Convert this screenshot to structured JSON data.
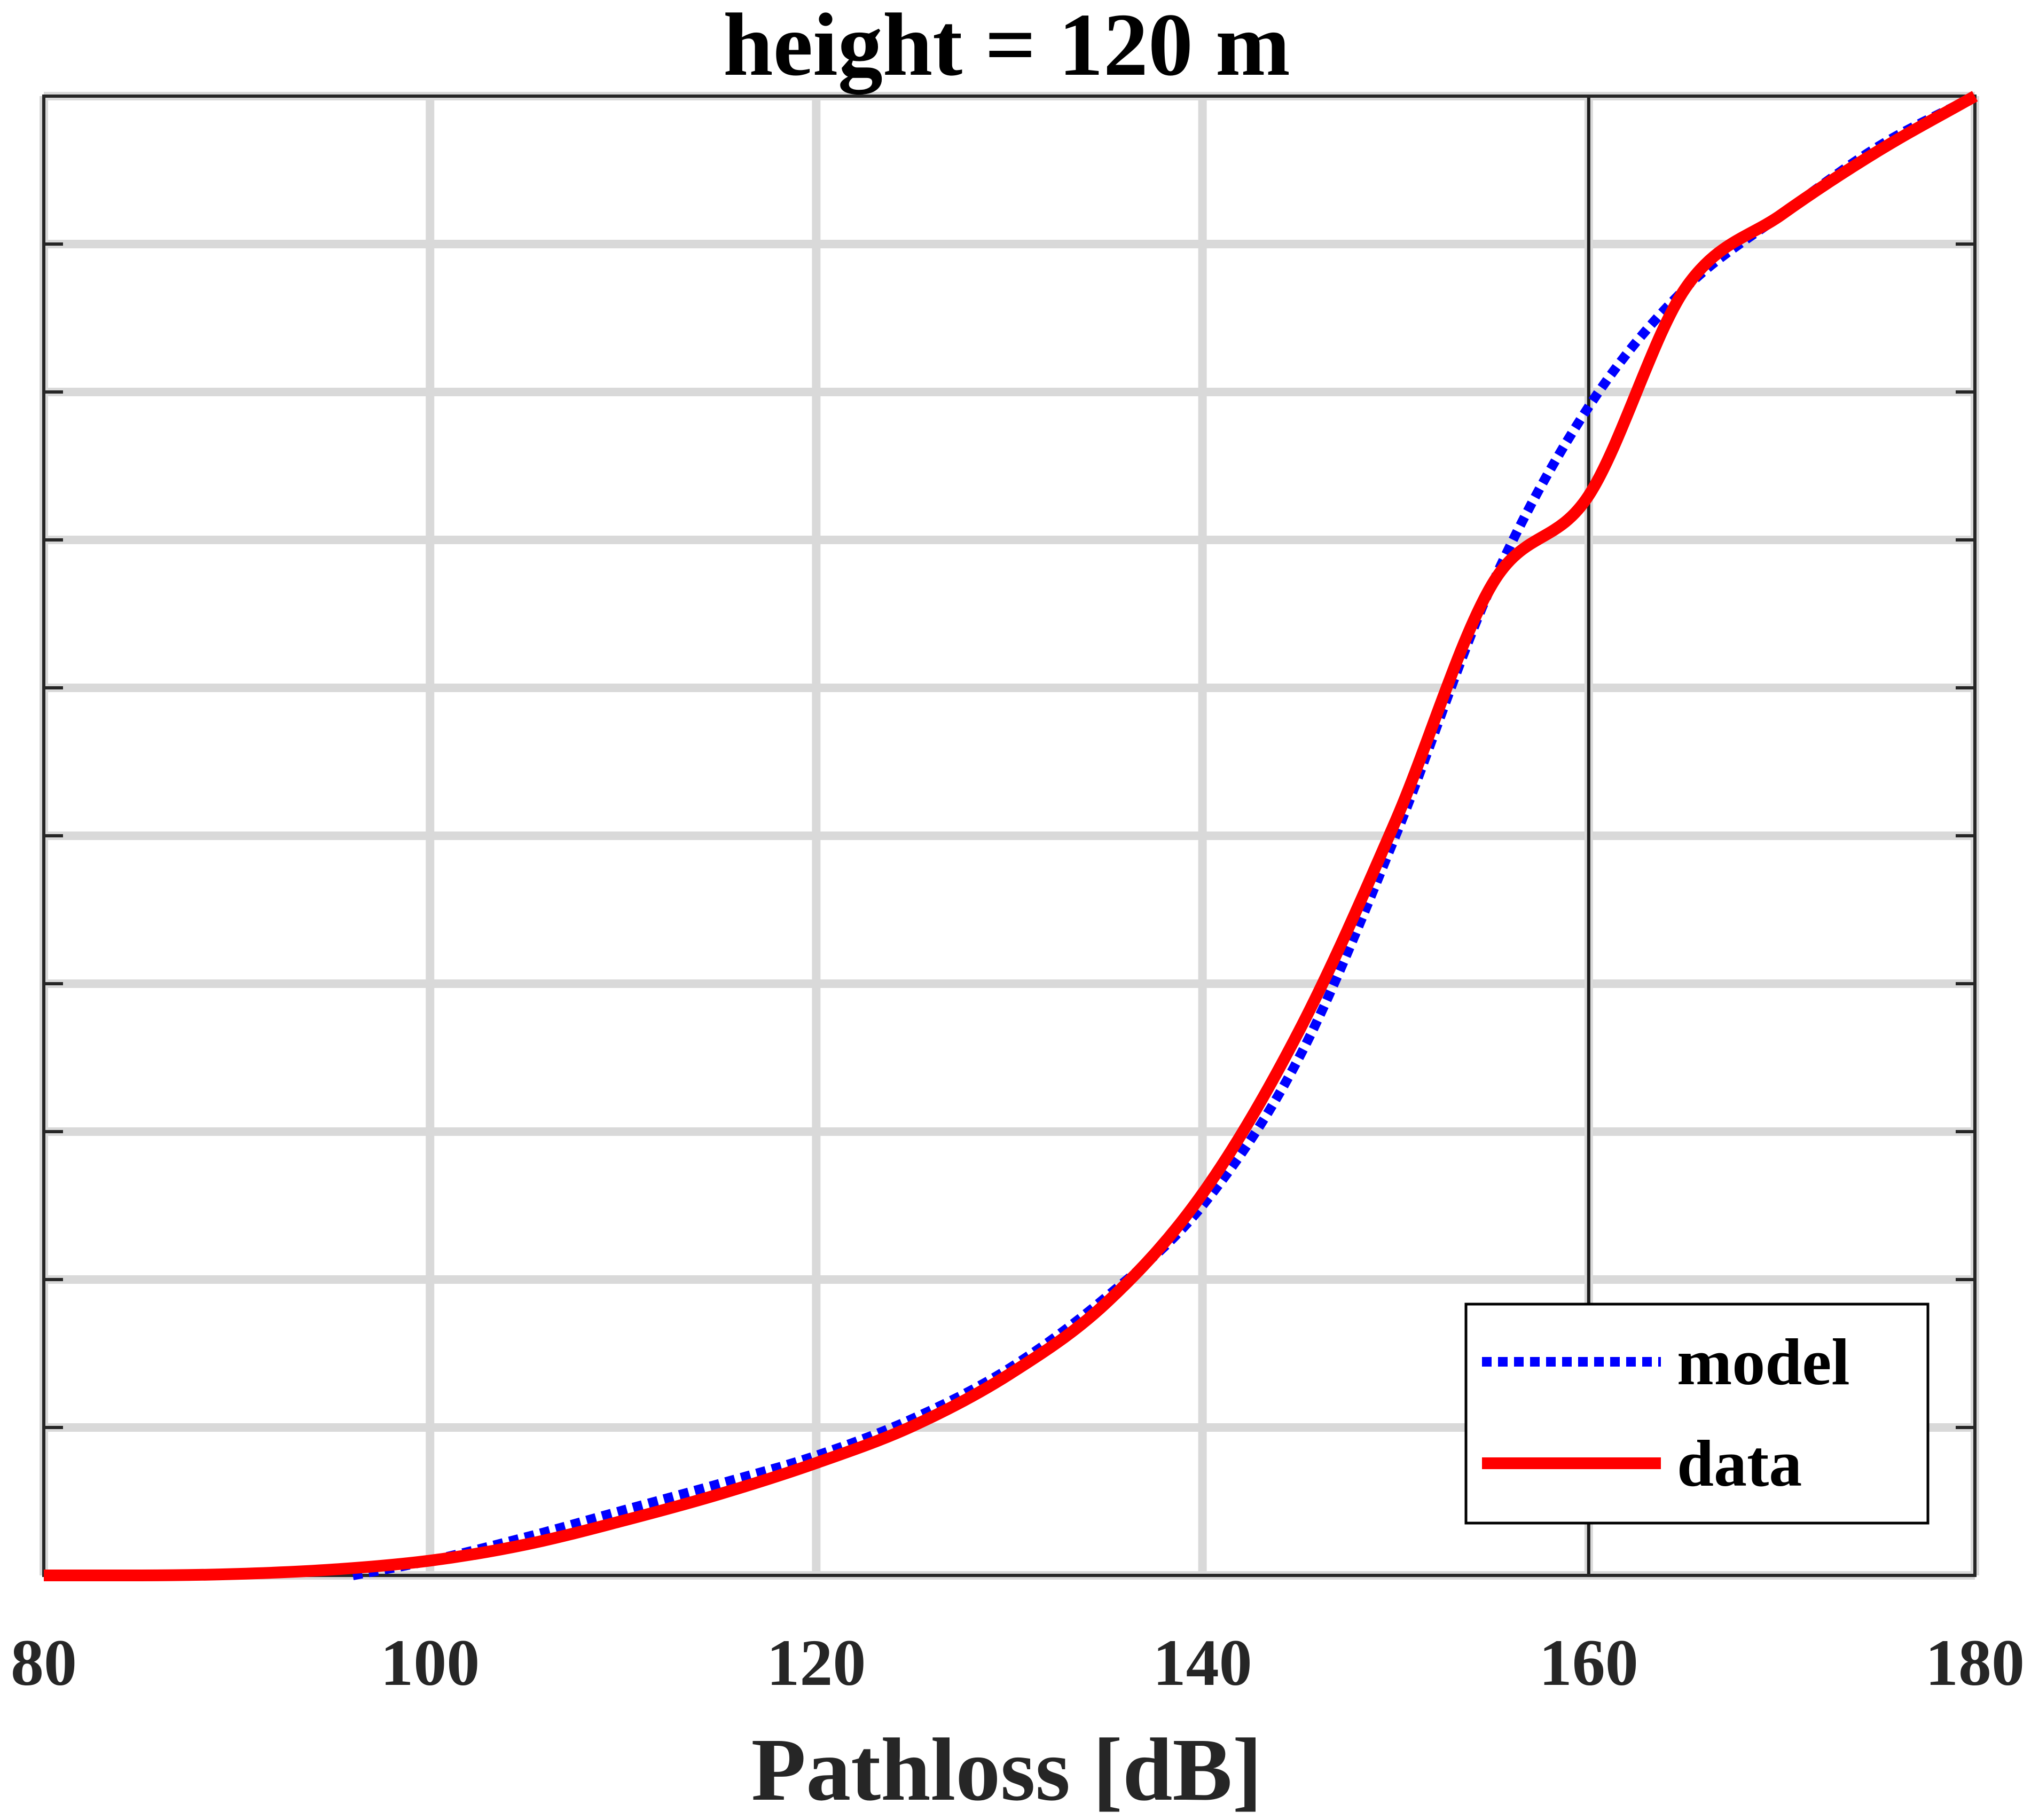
{
  "chart_data": {
    "type": "line",
    "title": "height = 120 m",
    "xlabel": "Pathloss [dB]",
    "ylabel": "",
    "xlim": [
      80,
      180
    ],
    "ylim": [
      0,
      1
    ],
    "xticks": [
      80,
      100,
      120,
      140,
      160,
      180
    ],
    "xtick_labels": [
      "80",
      "100",
      "120",
      "140",
      "160",
      "180"
    ],
    "yticks": [
      0,
      0.1,
      0.2,
      0.3,
      0.4,
      0.5,
      0.6,
      0.7,
      0.8,
      0.9,
      1.0
    ],
    "grid": true,
    "marker_line_x": 160,
    "legend_position": "bottom-right",
    "series": [
      {
        "name": "model",
        "style": "dotted",
        "color": "#0000ff",
        "x": [
          96,
          100,
          105,
          110,
          115,
          120,
          125,
          130,
          135,
          140,
          145,
          150,
          155,
          160,
          165,
          170,
          175,
          180
        ],
        "y": [
          0.0,
          0.01,
          0.026,
          0.044,
          0.062,
          0.081,
          0.106,
          0.14,
          0.188,
          0.25,
          0.35,
          0.5,
          0.67,
          0.79,
          0.87,
          0.92,
          0.966,
          1.0
        ]
      },
      {
        "name": "data",
        "style": "solid",
        "color": "#ff0000",
        "x": [
          80,
          85,
          90,
          95,
          100,
          105,
          110,
          115,
          120,
          125,
          130,
          135,
          140,
          145,
          150,
          155,
          160,
          165,
          170,
          175,
          180
        ],
        "y": [
          0.0,
          0.0,
          0.001,
          0.004,
          0.01,
          0.021,
          0.037,
          0.055,
          0.076,
          0.101,
          0.136,
          0.184,
          0.258,
          0.368,
          0.51,
          0.67,
          0.73,
          0.87,
          0.92,
          0.963,
          1.0
        ]
      }
    ]
  }
}
